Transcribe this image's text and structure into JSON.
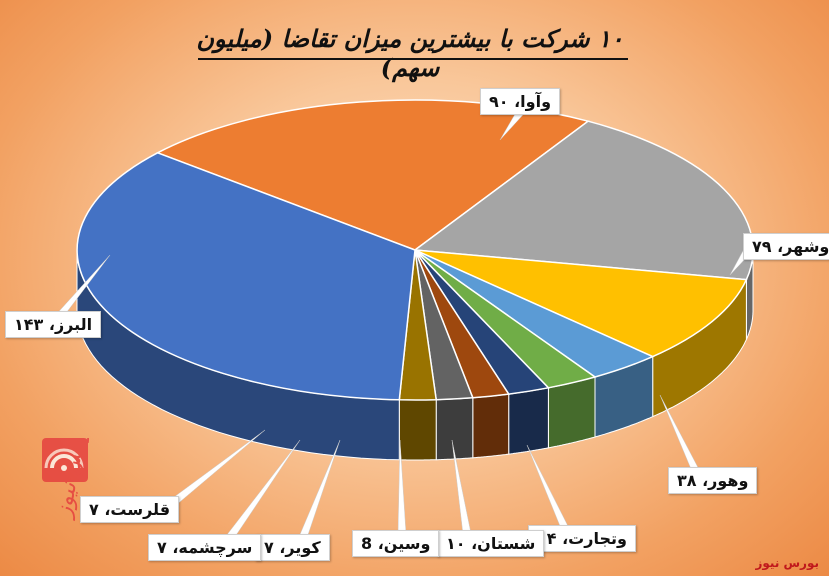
{
  "title": "۱۰ شرکت با بیشترین میزان تقاضا (میلیون سهم)",
  "source": "بورس نیوز",
  "chart_data": {
    "type": "pie",
    "title": "۱۰ شرکت با بیشترین میزان تقاضا (میلیون سهم)",
    "style": "3d",
    "slices": [
      {
        "label": "وآوا",
        "value": 90,
        "display": "وآوا، ۹۰",
        "color": "#ed7d31"
      },
      {
        "label": "وشهر",
        "value": 79,
        "display": "وشهر، ۷۹",
        "color": "#a5a5a5"
      },
      {
        "label": "وهور",
        "value": 38,
        "display": "وهور، ۳۸",
        "color": "#ffc000"
      },
      {
        "label": "وتجارت",
        "value": 14,
        "display": "وتجارت، ۱۴",
        "color": "#5b9bd5"
      },
      {
        "label": "شستان",
        "value": 10,
        "display": "شستان، ۱۰",
        "color": "#70ad47"
      },
      {
        "label": "وسین",
        "value": 8,
        "display": "وسین، 8",
        "color": "#264478"
      },
      {
        "label": "کویر",
        "value": 7,
        "display": "کویر، ۷",
        "color": "#9e480e"
      },
      {
        "label": "سرچشمه",
        "value": 7,
        "display": "سرچشمه، ۷",
        "color": "#636363"
      },
      {
        "label": "قلرست",
        "value": 7,
        "display": "قلرست، ۷",
        "color": "#997300"
      },
      {
        "label": "البرز",
        "value": 143,
        "display": "البرز، ۱۴۳",
        "color": "#4472c4"
      }
    ]
  }
}
